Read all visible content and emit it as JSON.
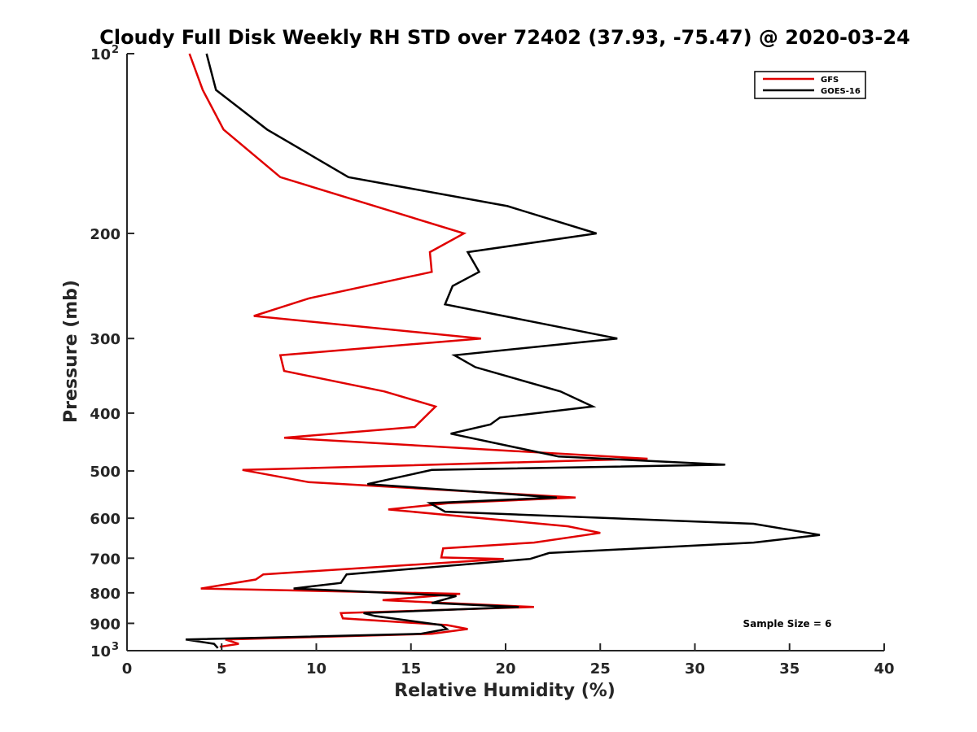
{
  "chart_data": {
    "type": "line",
    "title": "Cloudy Full Disk Weekly RH STD over 72402 (37.93, -75.47) @ 2020-03-24",
    "xlabel": "Relative Humidity (%)",
    "ylabel": "Pressure (mb)",
    "xlim": [
      0,
      40
    ],
    "ylim": [
      100,
      1000
    ],
    "y_scale": "log",
    "y_reversed": true,
    "grid": false,
    "legend_position": "top-right",
    "annotation": "Sample Size = 6",
    "x_ticks": [
      0,
      5,
      10,
      15,
      20,
      25,
      30,
      35,
      40
    ],
    "x_tick_labels": [
      "0",
      "5",
      "10",
      "15",
      "20",
      "25",
      "30",
      "35",
      "40"
    ],
    "y_ticks": [
      100,
      200,
      300,
      400,
      500,
      600,
      700,
      800,
      900,
      1000
    ],
    "y_tick_labels": [
      {
        "base": "10",
        "exp": "2"
      },
      {
        "base": "200",
        "exp": ""
      },
      {
        "base": "300",
        "exp": ""
      },
      {
        "base": "400",
        "exp": ""
      },
      {
        "base": "500",
        "exp": ""
      },
      {
        "base": "600",
        "exp": ""
      },
      {
        "base": "700",
        "exp": ""
      },
      {
        "base": "800",
        "exp": ""
      },
      {
        "base": "900",
        "exp": ""
      },
      {
        "base": "10",
        "exp": "3"
      }
    ],
    "series": [
      {
        "name": "GFS",
        "color": "#e00000",
        "points": [
          [
            3.3,
            100
          ],
          [
            4.0,
            115
          ],
          [
            5.1,
            134
          ],
          [
            8.1,
            161
          ],
          [
            17.8,
            200
          ],
          [
            16.0,
            215
          ],
          [
            16.1,
            232
          ],
          [
            9.6,
            257
          ],
          [
            6.7,
            275
          ],
          [
            18.7,
            300
          ],
          [
            8.1,
            320
          ],
          [
            8.3,
            340
          ],
          [
            13.6,
            368
          ],
          [
            16.3,
            390
          ],
          [
            15.2,
            422
          ],
          [
            8.3,
            440
          ],
          [
            27.5,
            477
          ],
          [
            6.1,
            498
          ],
          [
            9.6,
            522
          ],
          [
            23.7,
            554
          ],
          [
            17.0,
            566
          ],
          [
            13.8,
            580
          ],
          [
            23.3,
            619
          ],
          [
            25.0,
            635
          ],
          [
            21.5,
            659
          ],
          [
            16.7,
            674
          ],
          [
            16.6,
            698
          ],
          [
            19.9,
            702
          ],
          [
            7.2,
            745
          ],
          [
            6.8,
            760
          ],
          [
            3.9,
            787
          ],
          [
            17.6,
            803
          ],
          [
            13.5,
            823
          ],
          [
            21.5,
            845
          ],
          [
            11.3,
            865
          ],
          [
            11.4,
            883
          ],
          [
            16.9,
            906
          ],
          [
            18.0,
            920
          ],
          [
            16.1,
            937
          ],
          [
            5.2,
            958
          ],
          [
            5.9,
            974
          ],
          [
            4.9,
            985
          ]
        ]
      },
      {
        "name": "GOES-16",
        "color": "#000000",
        "points": [
          [
            4.2,
            100
          ],
          [
            4.7,
            115
          ],
          [
            7.4,
            134
          ],
          [
            11.7,
            161
          ],
          [
            20.1,
            180
          ],
          [
            24.8,
            200
          ],
          [
            18.0,
            215
          ],
          [
            18.6,
            232
          ],
          [
            17.2,
            245
          ],
          [
            16.8,
            263
          ],
          [
            25.9,
            300
          ],
          [
            17.3,
            320
          ],
          [
            18.4,
            335
          ],
          [
            22.9,
            368
          ],
          [
            24.6,
            390
          ],
          [
            19.7,
            407
          ],
          [
            19.2,
            418
          ],
          [
            17.1,
            433
          ],
          [
            22.8,
            473
          ],
          [
            31.6,
            488
          ],
          [
            16.1,
            498
          ],
          [
            12.7,
            526
          ],
          [
            22.7,
            554
          ],
          [
            16.0,
            566
          ],
          [
            16.8,
            585
          ],
          [
            33.1,
            613
          ],
          [
            36.6,
            640
          ],
          [
            33.1,
            659
          ],
          [
            22.3,
            686
          ],
          [
            21.3,
            702
          ],
          [
            11.6,
            745
          ],
          [
            11.3,
            770
          ],
          [
            8.8,
            787
          ],
          [
            17.4,
            810
          ],
          [
            16.1,
            832
          ],
          [
            20.7,
            845
          ],
          [
            12.5,
            865
          ],
          [
            13.1,
            875
          ],
          [
            16.6,
            906
          ],
          [
            16.9,
            920
          ],
          [
            15.5,
            937
          ],
          [
            3.1,
            958
          ],
          [
            4.6,
            974
          ],
          [
            4.8,
            990
          ]
        ]
      }
    ]
  }
}
